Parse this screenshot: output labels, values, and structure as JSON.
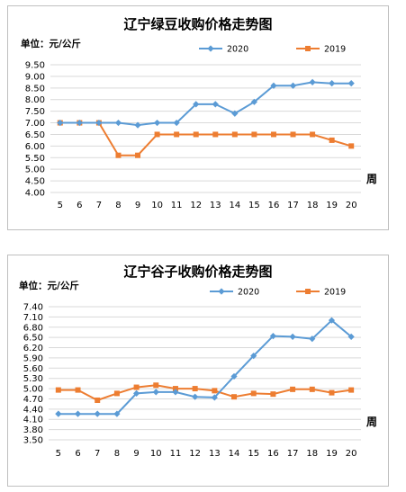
{
  "chart_data": [
    {
      "type": "line",
      "title": "辽宁绿豆收购价格走势图",
      "unit_label": "单位：元/公斤",
      "xlabel": "周",
      "x": [
        5,
        6,
        7,
        8,
        9,
        10,
        11,
        12,
        13,
        14,
        15,
        16,
        17,
        18,
        19,
        20
      ],
      "x_tick_labels": [
        "5",
        "6",
        "7",
        "8",
        "9",
        "10",
        "11",
        "12",
        "13",
        "14",
        "15",
        "16",
        "17",
        "18",
        "19",
        "20"
      ],
      "y_tick_labels": [
        "9.50",
        "9.00",
        "8.50",
        "8.00",
        "7.50",
        "7.00",
        "6.50",
        "6.00",
        "5.50",
        "5.00",
        "4.50",
        "4.00"
      ],
      "ylim": [
        4.0,
        9.5
      ],
      "grid": true,
      "legend_position": "top-right",
      "series": [
        {
          "name": "2020",
          "color": "#5b9bd5",
          "marker": "diamond",
          "values": [
            7.0,
            7.0,
            7.0,
            7.0,
            6.9,
            7.0,
            7.0,
            7.8,
            7.8,
            7.4,
            7.9,
            8.6,
            8.6,
            8.75,
            8.7,
            8.7
          ]
        },
        {
          "name": "2019",
          "color": "#ed7d31",
          "marker": "square",
          "values": [
            7.0,
            7.0,
            7.0,
            5.6,
            5.6,
            6.5,
            6.5,
            6.5,
            6.5,
            6.5,
            6.5,
            6.5,
            6.5,
            6.5,
            6.25,
            6.0
          ]
        }
      ]
    },
    {
      "type": "line",
      "title": "辽宁谷子收购价格走势图",
      "unit_label": "单位：元/公斤",
      "xlabel": "周",
      "x": [
        5,
        6,
        7,
        8,
        9,
        10,
        11,
        12,
        13,
        14,
        15,
        16,
        17,
        18,
        19,
        20
      ],
      "x_tick_labels": [
        "5",
        "6",
        "7",
        "8",
        "9",
        "10",
        "11",
        "12",
        "13",
        "14",
        "15",
        "16",
        "17",
        "18",
        "19",
        "20"
      ],
      "y_tick_labels": [
        "7.40",
        "7.10",
        "6.80",
        "6.50",
        "6.20",
        "5.90",
        "5.60",
        "5.30",
        "5.00",
        "4.70",
        "4.40",
        "4.10",
        "3.80",
        "3.50"
      ],
      "ylim": [
        3.5,
        7.4
      ],
      "grid": true,
      "legend_position": "top-right",
      "series": [
        {
          "name": "2020",
          "color": "#5b9bd5",
          "marker": "diamond",
          "values": [
            4.26,
            4.26,
            4.26,
            4.26,
            4.86,
            4.9,
            4.9,
            4.76,
            4.74,
            5.36,
            5.96,
            6.54,
            6.52,
            6.46,
            7.0,
            6.52
          ]
        },
        {
          "name": "2019",
          "color": "#ed7d31",
          "marker": "square",
          "values": [
            4.96,
            4.96,
            4.66,
            4.86,
            5.04,
            5.1,
            5.0,
            5.0,
            4.94,
            4.76,
            4.86,
            4.84,
            4.98,
            4.98,
            4.88,
            4.96
          ]
        }
      ]
    }
  ]
}
